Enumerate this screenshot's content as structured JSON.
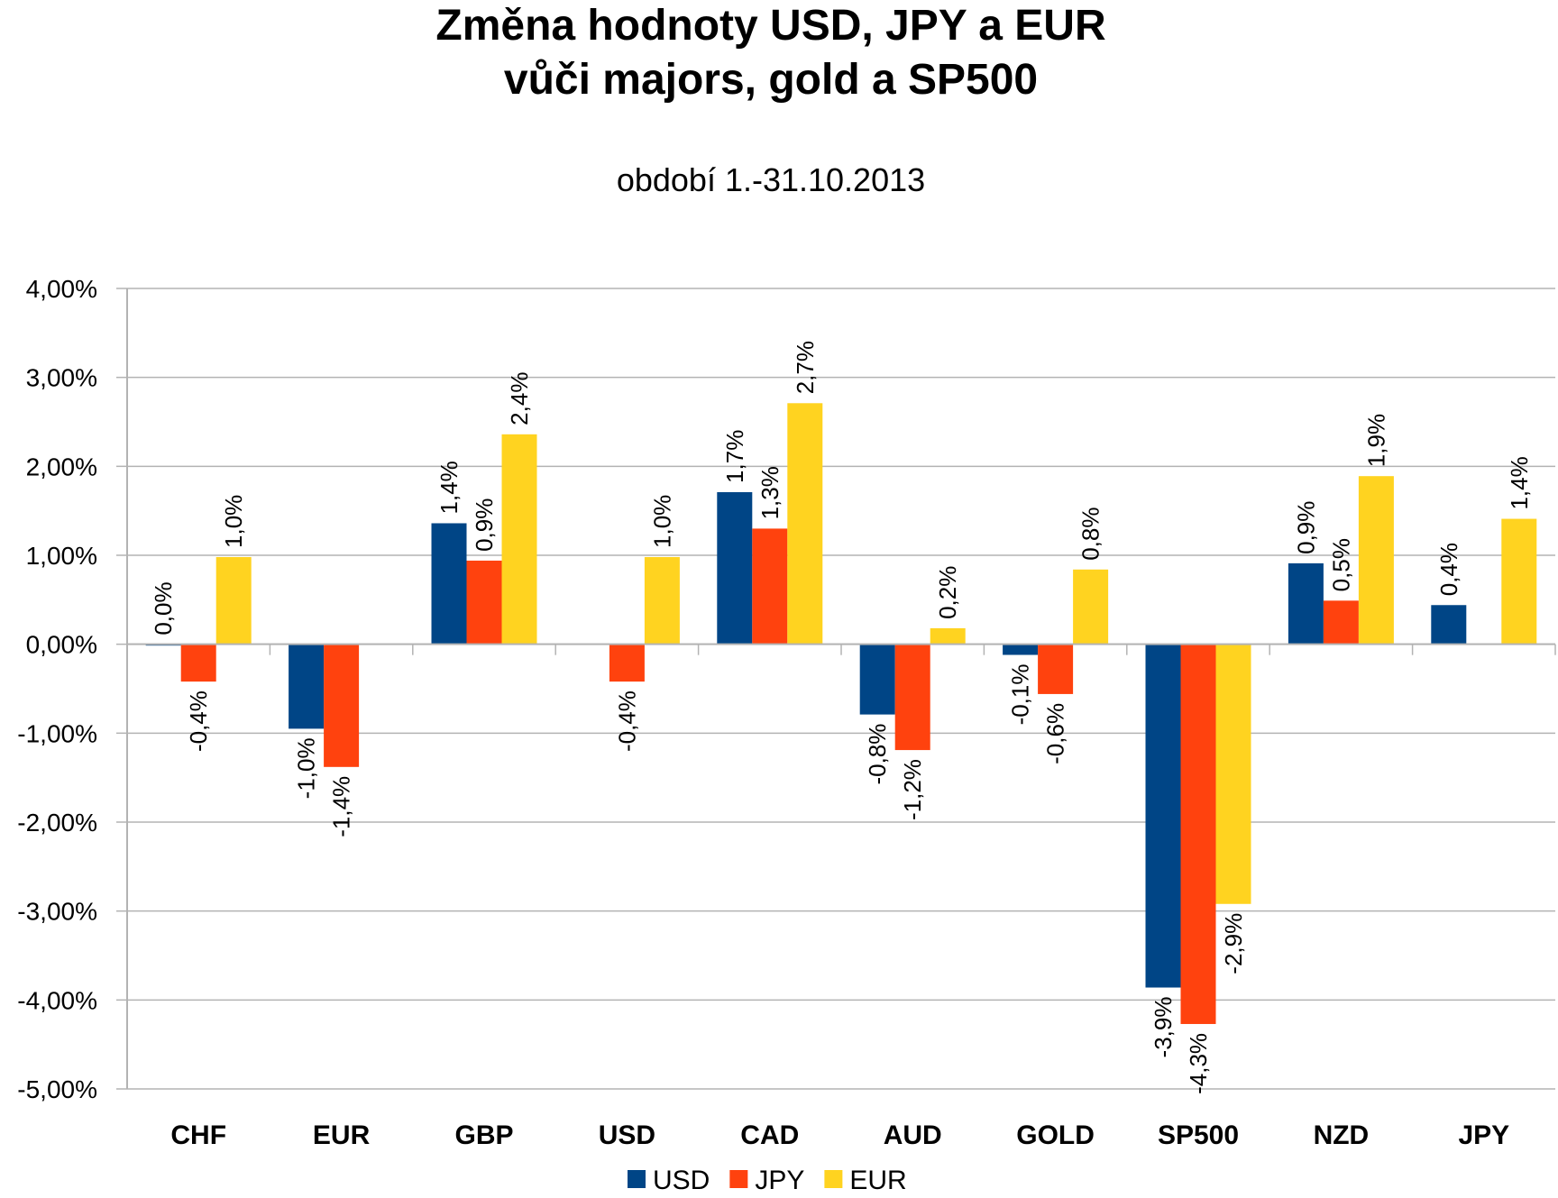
{
  "chart_data": {
    "type": "bar",
    "title_line1": "Změna hodnoty USD, JPY a EUR",
    "title_line2": "vůči majors, gold a SP500",
    "subtitle": "období 1.-31.10.2013",
    "categories": [
      "CHF",
      "EUR",
      "GBP",
      "USD",
      "CAD",
      "AUD",
      "GOLD",
      "SP500",
      "NZD",
      "JPY"
    ],
    "series": [
      {
        "name": "USD",
        "color": "#004586",
        "values": [
          0.0,
          -0.95,
          1.36,
          null,
          1.71,
          -0.79,
          -0.12,
          -3.86,
          0.91,
          0.44
        ],
        "labels": [
          "0,0%",
          "-1,0%",
          "1,4%",
          null,
          "1,7%",
          "-0,8%",
          "-0,1%",
          "-3,9%",
          "0,9%",
          "0,4%"
        ]
      },
      {
        "name": "JPY",
        "color": "#ff420e",
        "values": [
          -0.42,
          -1.38,
          0.94,
          -0.42,
          1.3,
          -1.19,
          -0.56,
          -4.27,
          0.49,
          null
        ],
        "labels": [
          "-0,4%",
          "-1,4%",
          "0,9%",
          "-0,4%",
          "1,3%",
          "-1,2%",
          "-0,6%",
          "-4,3%",
          "0,5%",
          null
        ]
      },
      {
        "name": "EUR",
        "color": "#ffd320",
        "values": [
          0.98,
          null,
          2.36,
          0.98,
          2.71,
          0.18,
          0.84,
          -2.92,
          1.89,
          1.41
        ],
        "labels": [
          "1,0%",
          null,
          "2,4%",
          "1,0%",
          "2,7%",
          "0,2%",
          "0,8%",
          "-2,9%",
          "1,9%",
          "1,4%"
        ]
      }
    ],
    "ylim": [
      -5,
      4
    ],
    "yticks": [
      4,
      3,
      2,
      1,
      0,
      -1,
      -2,
      -3,
      -4,
      -5
    ],
    "ytick_labels": [
      "4,00%",
      "3,00%",
      "2,00%",
      "1,00%",
      "0,00%",
      "-1,00%",
      "-2,00%",
      "-3,00%",
      "-4,00%",
      "-5,00%"
    ],
    "grid": true,
    "legend": "bottom-center",
    "axis_color": "#b3b3b3",
    "grid_color": "#b3b3b3"
  }
}
